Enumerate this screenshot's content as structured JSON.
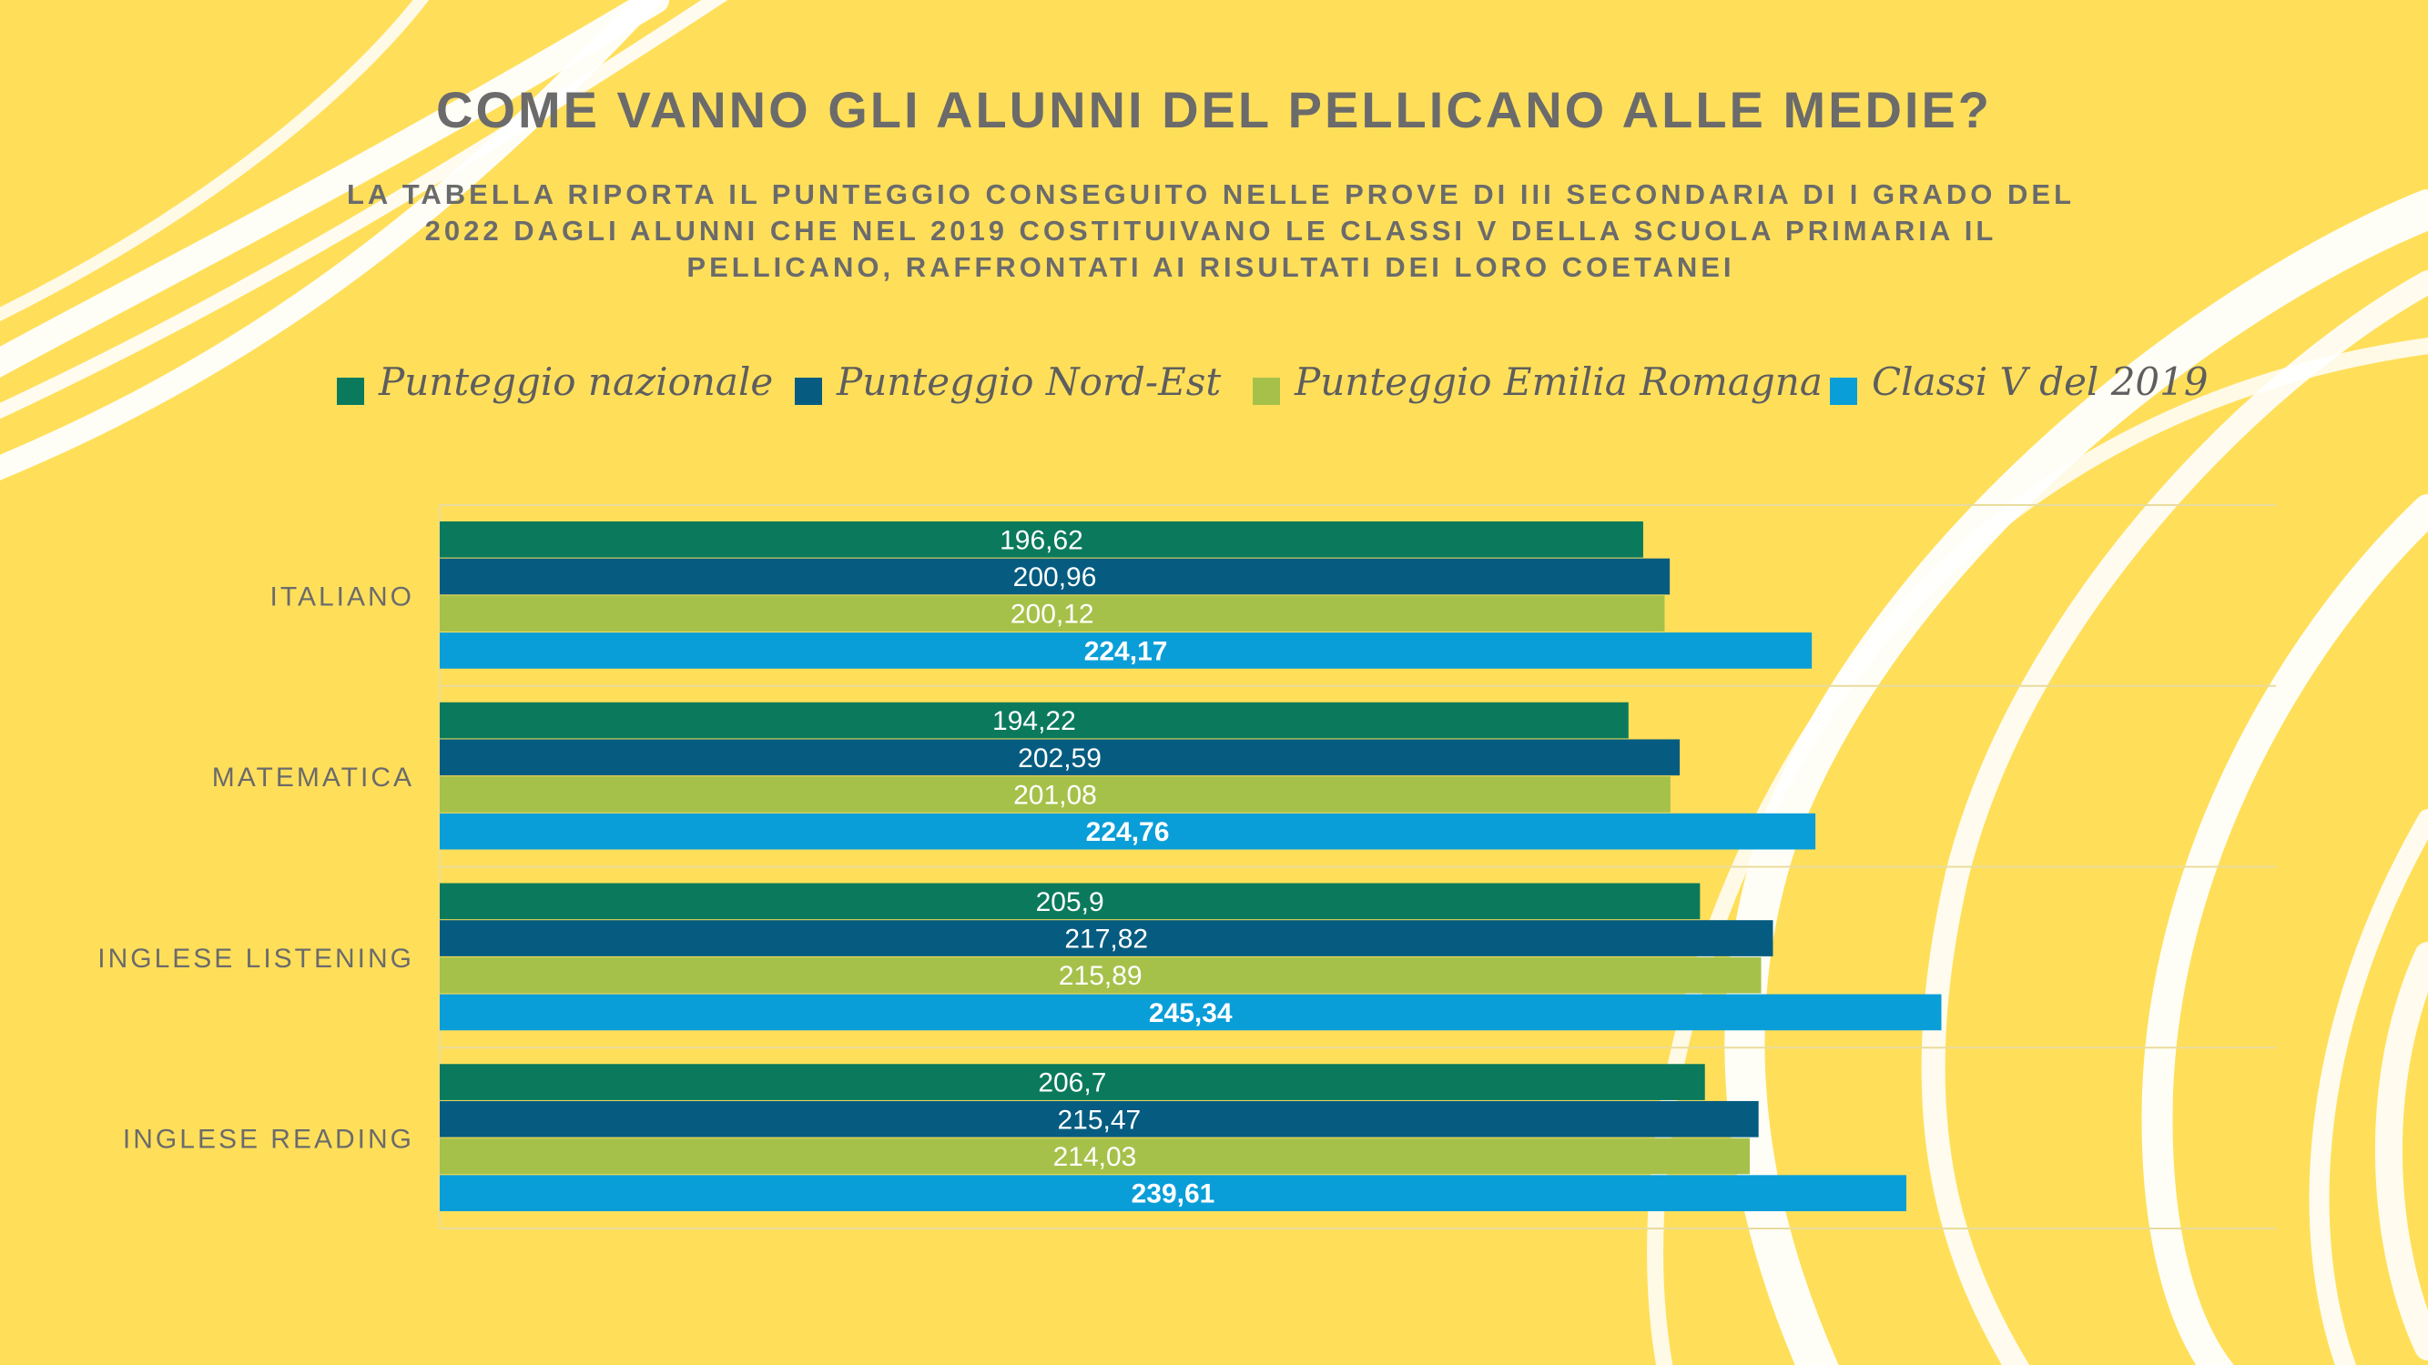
{
  "title": "COME VANNO GLI ALUNNI DEL PELLICANO ALLE MEDIE?",
  "subtitle": "LA TABELLA RIPORTA IL PUNTEGGIO CONSEGUITO NELLE PROVE DI III SECONDARIA DI I GRADO DEL 2022 DAGLI ALUNNI CHE NEL 2019 COSTITUIVANO LE CLASSI V DELLA SCUOLA PRIMARIA IL PELLICANO, RAFFRONTATI AI RISULTATI DEI LORO COETANEI",
  "legend": [
    {
      "label": "Punteggio nazionale",
      "color": "#0B7A5C"
    },
    {
      "label": "Punteggio Nord-Est",
      "color": "#055C80"
    },
    {
      "label": "Punteggio Emilia Romagna",
      "color": "#A6C14A"
    },
    {
      "label": "Classi V del 2019",
      "color": "#0A9ED8"
    }
  ],
  "chart_data": {
    "type": "bar",
    "orientation": "horizontal",
    "categories": [
      "ITALIANO",
      "MATEMATICA",
      "INGLESE LISTENING",
      "INGLESE READING"
    ],
    "series": [
      {
        "name": "Punteggio nazionale",
        "color": "#0B7A5C",
        "values": [
          196.62,
          194.22,
          205.9,
          206.7
        ],
        "labels": [
          "196,62",
          "194,22",
          "205,9",
          "206,7"
        ]
      },
      {
        "name": "Punteggio Nord-Est",
        "color": "#055C80",
        "values": [
          200.96,
          202.59,
          217.82,
          215.47
        ],
        "labels": [
          "200,96",
          "202,59",
          "217,82",
          "215,47"
        ]
      },
      {
        "name": "Punteggio Emilia Romagna",
        "color": "#A6C14A",
        "values": [
          200.12,
          201.08,
          215.89,
          214.03
        ],
        "labels": [
          "200,12",
          "201,08",
          "215,89",
          "214,03"
        ]
      },
      {
        "name": "Classi V del 2019",
        "color": "#0A9ED8",
        "values": [
          224.17,
          224.76,
          245.34,
          239.61
        ],
        "labels": [
          "224,17",
          "224,76",
          "245,34",
          "239,61"
        ],
        "bold_labels": true
      }
    ],
    "xlim": [
      0,
      300
    ],
    "grid": true,
    "legend_position": "top"
  }
}
